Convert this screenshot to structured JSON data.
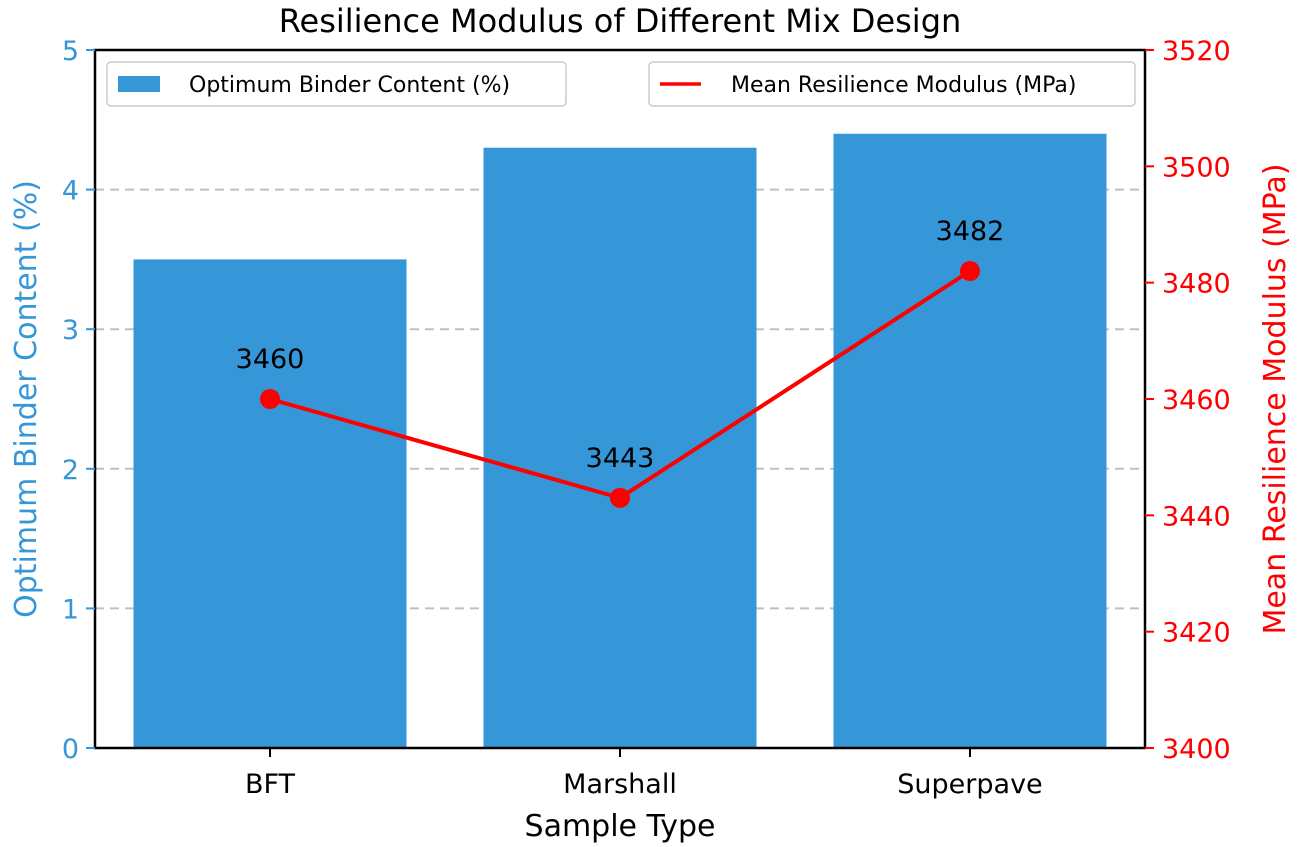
{
  "chart_data": {
    "type": "bar+line",
    "title": "Resilience Modulus of Different Mix Design",
    "xlabel": "Sample Type",
    "categories": [
      "BFT",
      "Marshall",
      "Superpave"
    ],
    "series": [
      {
        "name": "Optimum Binder Content (%)",
        "type": "bar",
        "axis": "left",
        "color": "#3596d8",
        "values": [
          3.5,
          4.3,
          4.4
        ]
      },
      {
        "name": "Mean Resilience Modulus (MPa)",
        "type": "line",
        "axis": "right",
        "color": "#ff0000",
        "marker": "circle",
        "values": [
          3460,
          3443,
          3482
        ],
        "data_labels": [
          "3460",
          "3443",
          "3482"
        ]
      }
    ],
    "ylabel_left": "Optimum Binder Content (%)",
    "ylabel_right": "Mean Resilience Modulus (MPa)",
    "ylim_left": [
      0,
      5
    ],
    "ylim_right": [
      3400,
      3520
    ],
    "yticks_left": [
      "0",
      "1",
      "2",
      "3",
      "4",
      "5"
    ],
    "yticks_right": [
      "3400",
      "3420",
      "3440",
      "3460",
      "3480",
      "3500",
      "3520"
    ],
    "grid": "horizontal dashed (left axis)",
    "legend": {
      "bar_entry": {
        "label": "Optimum Binder Content (%)",
        "position": "upper left"
      },
      "line_entry": {
        "label": "Mean Resilience Modulus (MPa)",
        "position": "upper right"
      }
    },
    "colors": {
      "left_axis": "#3596d8",
      "right_axis": "#ff0000",
      "grid": "#c0c0c0"
    }
  }
}
